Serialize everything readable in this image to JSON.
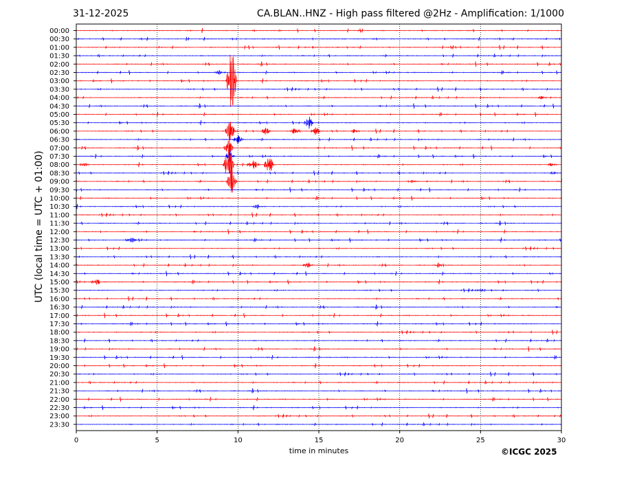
{
  "header": {
    "date": "31-12-2025",
    "title": "CA.BLAN..HNZ - High pass filtered @2Hz - Amplification: 1/1000"
  },
  "footer": {
    "copyright": "©ICGC 2025"
  },
  "colors": {
    "trace_a": "#ff0000",
    "trace_b": "#0000ff",
    "gridline": "#000000",
    "frame": "#000000"
  },
  "chart_data": {
    "type": "line",
    "title": "CA.BLAN..HNZ - High pass filtered @2Hz - Amplification: 1/1000",
    "subtitle": "31-12-2025",
    "xlabel": "time in minutes",
    "ylabel": "UTC (local time = UTC + 01:00)",
    "xlim": [
      0,
      30
    ],
    "x_ticks": [
      0,
      5,
      10,
      15,
      20,
      25,
      30
    ],
    "x_tick_labels": [
      "0",
      "5",
      "10",
      "15",
      "20",
      "25",
      "30"
    ],
    "vertical_gridlines_at": [
      5,
      10,
      15,
      20,
      25
    ],
    "grid": "vertical dotted",
    "legend": "none",
    "row_labels": [
      "00:00",
      "00:30",
      "01:00",
      "01:30",
      "02:00",
      "02:30",
      "03:00",
      "03:30",
      "04:00",
      "04:30",
      "05:00",
      "05:30",
      "06:00",
      "06:30",
      "07:00",
      "07:30",
      "08:00",
      "08:30",
      "09:00",
      "09:30",
      "10:00",
      "10:30",
      "11:00",
      "11:30",
      "12:00",
      "12:30",
      "13:00",
      "13:30",
      "14:00",
      "14:30",
      "15:00",
      "15:30",
      "16:00",
      "16:30",
      "17:00",
      "17:30",
      "18:00",
      "18:30",
      "19:00",
      "19:30",
      "20:00",
      "20:30",
      "21:00",
      "21:30",
      "22:00",
      "22:30",
      "23:00",
      "23:30"
    ],
    "row_color_cycle": [
      "trace_a",
      "trace_b"
    ],
    "events": [
      {
        "row": "02:30",
        "minute": 8.8,
        "amplitude": 0.6
      },
      {
        "row": "03:00",
        "minute": 9.6,
        "amplitude": 12
      },
      {
        "row": "05:30",
        "minute": 14.4,
        "amplitude": 2
      },
      {
        "row": "06:00",
        "minute": 9.5,
        "amplitude": 3
      },
      {
        "row": "06:00",
        "minute": 11.7,
        "amplitude": 1.2
      },
      {
        "row": "06:00",
        "minute": 13.5,
        "amplitude": 1
      },
      {
        "row": "06:00",
        "minute": 14.8,
        "amplitude": 2
      },
      {
        "row": "06:00",
        "minute": 17.2,
        "amplitude": 0.8
      },
      {
        "row": "06:30",
        "minute": 10.0,
        "amplitude": 1.5
      },
      {
        "row": "07:00",
        "minute": 9.4,
        "amplitude": 3
      },
      {
        "row": "07:30",
        "minute": 9.5,
        "amplitude": 2
      },
      {
        "row": "08:00",
        "minute": 9.4,
        "amplitude": 6
      },
      {
        "row": "08:00",
        "minute": 10.8,
        "amplitude": 1
      },
      {
        "row": "08:00",
        "minute": 11.0,
        "amplitude": 2
      },
      {
        "row": "08:00",
        "minute": 11.9,
        "amplitude": 3
      },
      {
        "row": "08:00",
        "minute": 0.5,
        "amplitude": 0.6
      },
      {
        "row": "08:00",
        "minute": 29.4,
        "amplitude": 0.5
      },
      {
        "row": "09:00",
        "minute": 9.6,
        "amplitude": 4
      },
      {
        "row": "10:30",
        "minute": 11.2,
        "amplitude": 0.7
      },
      {
        "row": "12:30",
        "minute": 3.4,
        "amplitude": 0.8
      },
      {
        "row": "14:00",
        "minute": 14.3,
        "amplitude": 0.8
      },
      {
        "row": "14:00",
        "minute": 22.5,
        "amplitude": 0.5
      },
      {
        "row": "15:00",
        "minute": 1.2,
        "amplitude": 1.3
      },
      {
        "row": "15:30",
        "minute": 25.0,
        "amplitude": 0.4
      },
      {
        "row": "04:00",
        "minute": 28.8,
        "amplitude": 0.5
      },
      {
        "row": "08:30",
        "minute": 29.5,
        "amplitude": 0.5
      },
      {
        "row": "09:00",
        "minute": 20.7,
        "amplitude": 0.5
      }
    ]
  }
}
